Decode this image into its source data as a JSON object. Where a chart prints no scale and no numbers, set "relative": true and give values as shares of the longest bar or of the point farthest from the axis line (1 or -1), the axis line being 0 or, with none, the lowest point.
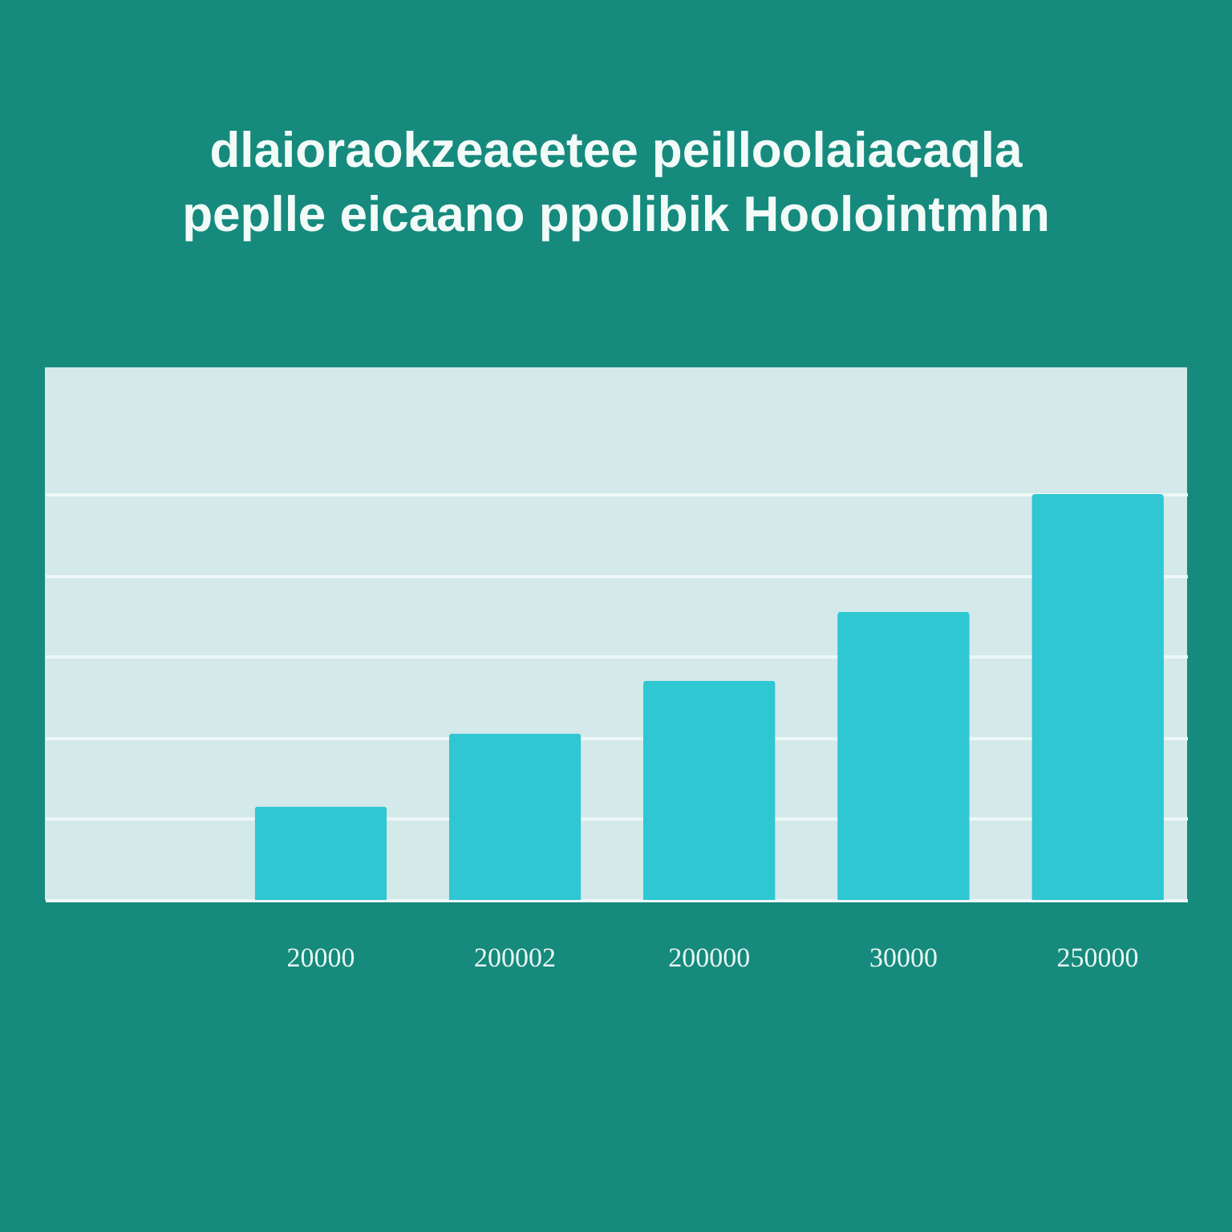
{
  "chart_data": {
    "type": "bar",
    "title": "dlaioraokzeaeetee peilloolaiacaqla peplle eicaano ppolibik Hoolointmhn",
    "categories": [
      "20000",
      "200002",
      "200000",
      "30000",
      "250000"
    ],
    "values": [
      0.23,
      0.41,
      0.54,
      0.71,
      1
    ],
    "color": "#2fc7d1",
    "relative": true,
    "grid": "y"
  }
}
